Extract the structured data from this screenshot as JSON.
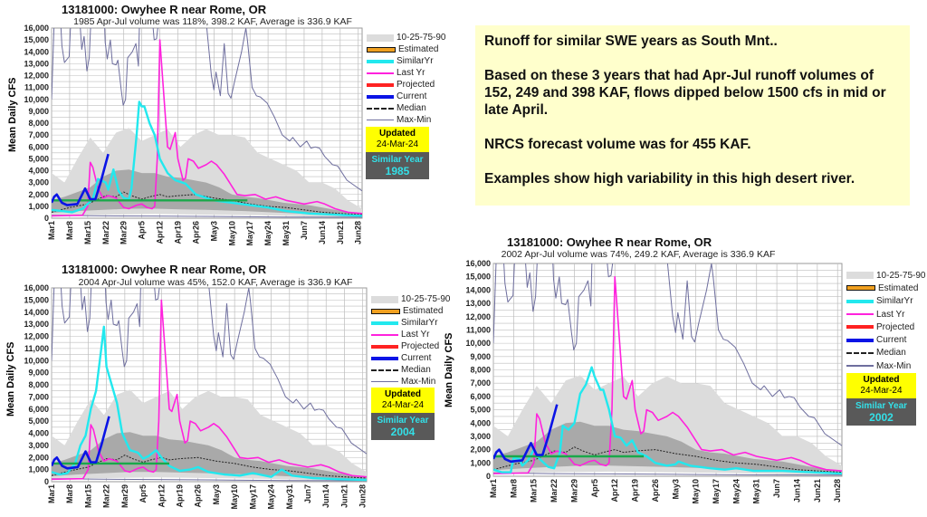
{
  "note": {
    "lines": [
      "Runoff for similar SWE years as South Mnt..",
      "Based on these 3 years that had Apr-Jul runoff volumes of 152, 249 and 398 KAF, flows dipped below 1500 cfs in mid or late April.",
      "NRCS forecast volume was for 455 KAF.",
      "Examples show high variability in this high desert river."
    ]
  },
  "colors": {
    "band_outer": "#dcdcdc",
    "band_inner": "#a9a9a9",
    "similar": "#22e8ee",
    "last_yr": "#ff22dd",
    "projected": "#ff2222",
    "current": "#0a14e6",
    "median": "#222222",
    "maxmin": "#6e6e9e",
    "threshold": "#1aa84a",
    "estimated": "#f0a020",
    "updated_bg": "#ffff00",
    "similar_box_bg": "#595959"
  },
  "chart_data": {
    "type": "line",
    "ylabel": "Mean Daily CFS",
    "ylim": [
      0,
      16000
    ],
    "xlim_days_from_mar1": [
      0,
      120.5
    ],
    "yticks": [
      "0",
      "1,000",
      "2,000",
      "3,000",
      "4,000",
      "5,000",
      "6,000",
      "7,000",
      "8,000",
      "9,000",
      "10,000",
      "11,000",
      "12,000",
      "13,000",
      "14,000",
      "15,000",
      "16,000"
    ],
    "xticks": [
      "Mar1",
      "Mar8",
      "Mar15",
      "Mar22",
      "Mar29",
      "Apr5",
      "Apr12",
      "Apr19",
      "Apr26",
      "May3",
      "May10",
      "May17",
      "May24",
      "May31",
      "Jun7",
      "Jun14",
      "Jun21",
      "Jun28"
    ],
    "legend": [
      "10-25-75-90",
      "Estimated",
      "SimilarYr",
      "Last Yr",
      "Projected",
      "Current",
      "Median",
      "Max-Min"
    ],
    "updated_label": "Updated",
    "updated_date": "24-Mar-24",
    "similar_label": "Similar Year",
    "common_series": {
      "max": [
        [
          0,
          10000
        ],
        [
          1,
          16500
        ],
        [
          3.5,
          16500
        ],
        [
          4,
          14500
        ],
        [
          5,
          13100
        ],
        [
          6.8,
          13600
        ],
        [
          7.4,
          16500
        ],
        [
          11,
          16500
        ],
        [
          11.7,
          14200
        ],
        [
          12.6,
          15300
        ],
        [
          13.7,
          12400
        ],
        [
          14.6,
          13500
        ],
        [
          15.2,
          16500
        ],
        [
          20.5,
          16500
        ],
        [
          20.8,
          14800
        ],
        [
          21.6,
          13400
        ],
        [
          22.8,
          15000
        ],
        [
          23.6,
          13000
        ],
        [
          25,
          12900
        ],
        [
          25.7,
          13300
        ],
        [
          27,
          10800
        ],
        [
          27.8,
          9500
        ],
        [
          28.7,
          10000
        ],
        [
          29.5,
          13500
        ],
        [
          31.3,
          14000
        ],
        [
          32.7,
          14700
        ],
        [
          33.7,
          12800
        ],
        [
          34.1,
          16500
        ],
        [
          39.2,
          16500
        ],
        [
          39.8,
          15000
        ],
        [
          40.7,
          15100
        ],
        [
          41.5,
          16500
        ],
        [
          60,
          16500
        ],
        [
          62,
          12000
        ],
        [
          63,
          10800
        ],
        [
          63.8,
          12300
        ],
        [
          65.5,
          10300
        ],
        [
          67,
          14700
        ],
        [
          68.5,
          10500
        ],
        [
          69.6,
          10100
        ],
        [
          71,
          11500
        ],
        [
          73.7,
          14000
        ],
        [
          75.4,
          16000
        ],
        [
          76,
          15000
        ],
        [
          77.8,
          11000
        ],
        [
          79.5,
          10300
        ],
        [
          81,
          10200
        ],
        [
          83.6,
          9700
        ],
        [
          86.5,
          8500
        ],
        [
          89.5,
          7000
        ],
        [
          92.4,
          6500
        ],
        [
          93.6,
          6800
        ],
        [
          96.5,
          6000
        ],
        [
          99,
          6500
        ],
        [
          100.6,
          5900
        ],
        [
          102.3,
          6000
        ],
        [
          104,
          5900
        ],
        [
          106,
          5200
        ],
        [
          109,
          4500
        ],
        [
          111,
          4400
        ],
        [
          114.6,
          3200
        ],
        [
          120.5,
          2300
        ]
      ],
      "min": [
        [
          0,
          250
        ],
        [
          20,
          200
        ],
        [
          40,
          180
        ],
        [
          60,
          150
        ],
        [
          90,
          100
        ],
        [
          120.5,
          80
        ]
      ],
      "p10": [
        [
          0,
          250
        ],
        [
          20,
          300
        ],
        [
          40,
          350
        ],
        [
          60,
          300
        ],
        [
          80,
          250
        ],
        [
          100,
          150
        ],
        [
          120.5,
          80
        ]
      ],
      "p90": [
        [
          0,
          3800
        ],
        [
          5,
          3000
        ],
        [
          10,
          5000
        ],
        [
          15,
          6800
        ],
        [
          20,
          5500
        ],
        [
          25,
          7200
        ],
        [
          30,
          7600
        ],
        [
          35,
          6500
        ],
        [
          40,
          7000
        ],
        [
          45,
          7500
        ],
        [
          50,
          6000
        ],
        [
          55,
          7000
        ],
        [
          60,
          7500
        ],
        [
          65,
          7000
        ],
        [
          70,
          7000
        ],
        [
          75,
          6800
        ],
        [
          80,
          5500
        ],
        [
          85,
          5000
        ],
        [
          90,
          4500
        ],
        [
          95,
          4000
        ],
        [
          100,
          3000
        ],
        [
          105,
          3000
        ],
        [
          110,
          2500
        ],
        [
          115,
          1500
        ],
        [
          120.5,
          800
        ]
      ],
      "p25": [
        [
          0,
          450
        ],
        [
          10,
          600
        ],
        [
          20,
          700
        ],
        [
          30,
          800
        ],
        [
          40,
          800
        ],
        [
          50,
          750
        ],
        [
          60,
          700
        ],
        [
          75,
          600
        ],
        [
          90,
          450
        ],
        [
          105,
          300
        ],
        [
          120.5,
          150
        ]
      ],
      "p75": [
        [
          0,
          1500
        ],
        [
          5,
          1800
        ],
        [
          10,
          2200
        ],
        [
          15,
          2600
        ],
        [
          20,
          3500
        ],
        [
          25,
          4000
        ],
        [
          30,
          4100
        ],
        [
          35,
          3800
        ],
        [
          40,
          3800
        ],
        [
          45,
          3500
        ],
        [
          50,
          3400
        ],
        [
          55,
          3200
        ],
        [
          60,
          3000
        ],
        [
          65,
          2600
        ],
        [
          70,
          2000
        ],
        [
          75,
          1800
        ],
        [
          80,
          1700
        ],
        [
          90,
          1300
        ],
        [
          100,
          1100
        ],
        [
          110,
          700
        ],
        [
          120.5,
          350
        ]
      ],
      "median": [
        [
          0,
          500
        ],
        [
          7,
          900
        ],
        [
          14,
          1200
        ],
        [
          21,
          1900
        ],
        [
          25,
          1800
        ],
        [
          28,
          2200
        ],
        [
          31,
          1900
        ],
        [
          35,
          1600
        ],
        [
          38,
          1800
        ],
        [
          42,
          2000
        ],
        [
          45,
          1800
        ],
        [
          49,
          1900
        ],
        [
          56,
          2000
        ],
        [
          63,
          1700
        ],
        [
          70,
          1500
        ],
        [
          77,
          1200
        ],
        [
          84,
          1000
        ],
        [
          91,
          900
        ],
        [
          98,
          700
        ],
        [
          105,
          500
        ],
        [
          112,
          400
        ],
        [
          120.5,
          300
        ]
      ],
      "last_yr": [
        [
          0,
          200
        ],
        [
          12,
          250
        ],
        [
          14,
          1000
        ],
        [
          15,
          4700
        ],
        [
          16,
          4300
        ],
        [
          18,
          2500
        ],
        [
          20,
          1700
        ],
        [
          22,
          1900
        ],
        [
          25,
          1700
        ],
        [
          28,
          900
        ],
        [
          30,
          800
        ],
        [
          33,
          1100
        ],
        [
          35,
          1200
        ],
        [
          37,
          900
        ],
        [
          39,
          800
        ],
        [
          40,
          1000
        ],
        [
          41,
          5000
        ],
        [
          42,
          15000
        ],
        [
          43,
          12000
        ],
        [
          45,
          6000
        ],
        [
          46,
          5800
        ],
        [
          48,
          7200
        ],
        [
          49,
          5000
        ],
        [
          51,
          3200
        ],
        [
          52,
          3400
        ],
        [
          53,
          5000
        ],
        [
          55,
          4800
        ],
        [
          57,
          4200
        ],
        [
          60,
          4500
        ],
        [
          62,
          4800
        ],
        [
          64,
          4500
        ],
        [
          67,
          3700
        ],
        [
          72,
          2000
        ],
        [
          75,
          1900
        ],
        [
          79,
          2000
        ],
        [
          83,
          1600
        ],
        [
          87,
          1800
        ],
        [
          91,
          1500
        ],
        [
          98,
          1200
        ],
        [
          103,
          1400
        ],
        [
          106,
          1200
        ],
        [
          110,
          800
        ],
        [
          115,
          500
        ],
        [
          120.5,
          400
        ]
      ],
      "current": [
        [
          0,
          1300
        ],
        [
          1,
          1800
        ],
        [
          2,
          2000
        ],
        [
          4,
          1300
        ],
        [
          6,
          1100
        ],
        [
          10,
          1200
        ],
        [
          13,
          2500
        ],
        [
          15,
          1600
        ],
        [
          17,
          1600
        ],
        [
          19,
          3000
        ],
        [
          22,
          5400
        ]
      ]
    },
    "panels": [
      {
        "title": "13181000: Owyhee R near Rome, OR",
        "subtitle": "1985 Apr-Jul volume was 118%, 398.2 KAF, Average is 336.9 KAF",
        "similar_year": "1985",
        "threshold": {
          "value": 1500,
          "end_day": 76
        },
        "similar_yr": [
          [
            0,
            700
          ],
          [
            4,
            600
          ],
          [
            8,
            500
          ],
          [
            12,
            800
          ],
          [
            16,
            1600
          ],
          [
            18,
            3300
          ],
          [
            21,
            3000
          ],
          [
            22,
            2400
          ],
          [
            24,
            4100
          ],
          [
            26,
            2300
          ],
          [
            28,
            1700
          ],
          [
            30,
            1600
          ],
          [
            31,
            2500
          ],
          [
            33,
            7000
          ],
          [
            34,
            9800
          ],
          [
            35,
            9400
          ],
          [
            36,
            9400
          ],
          [
            38,
            8000
          ],
          [
            40,
            7000
          ],
          [
            42,
            5000
          ],
          [
            45,
            3800
          ],
          [
            48,
            3200
          ],
          [
            52,
            2900
          ],
          [
            56,
            2000
          ],
          [
            63,
            1500
          ],
          [
            70,
            1300
          ],
          [
            77,
            1100
          ],
          [
            84,
            900
          ],
          [
            91,
            600
          ],
          [
            100,
            400
          ],
          [
            110,
            300
          ],
          [
            120.5,
            200
          ]
        ]
      },
      {
        "title": "13181000: Owyhee R near Rome, OR",
        "subtitle": "2004 Apr-Jul volume was 45%, 152.0 KAF, Average is 336.9 KAF",
        "similar_year": "2004",
        "threshold": {
          "value": 1500,
          "end_day": 45
        },
        "similar_yr": [
          [
            0,
            800
          ],
          [
            3,
            600
          ],
          [
            6,
            700
          ],
          [
            9,
            1500
          ],
          [
            11,
            3000
          ],
          [
            13,
            3800
          ],
          [
            15,
            6000
          ],
          [
            17,
            7500
          ],
          [
            19,
            11000
          ],
          [
            20,
            12800
          ],
          [
            21,
            9500
          ],
          [
            23,
            8000
          ],
          [
            25,
            6500
          ],
          [
            27,
            4000
          ],
          [
            30,
            2600
          ],
          [
            33,
            2400
          ],
          [
            35,
            1900
          ],
          [
            37,
            2100
          ],
          [
            40,
            2600
          ],
          [
            42,
            2000
          ],
          [
            45,
            1300
          ],
          [
            49,
            900
          ],
          [
            53,
            1000
          ],
          [
            56,
            1200
          ],
          [
            60,
            800
          ],
          [
            66,
            600
          ],
          [
            72,
            500
          ],
          [
            77,
            700
          ],
          [
            84,
            400
          ],
          [
            88,
            1000
          ],
          [
            92,
            500
          ],
          [
            100,
            300
          ],
          [
            110,
            200
          ],
          [
            120.5,
            150
          ]
        ]
      },
      {
        "title": "13181000: Owyhee R near Rome, OR",
        "subtitle": "2002 Apr-Jul volume was 74%, 249.2 KAF, Average is 336.9 KAF",
        "similar_year": "2002",
        "threshold": {
          "value": 1500,
          "end_day": 52
        },
        "similar_yr": [
          [
            0,
            500
          ],
          [
            3,
            300
          ],
          [
            6,
            300
          ],
          [
            7,
            1400
          ],
          [
            9,
            1300
          ],
          [
            10,
            800
          ],
          [
            12,
            1200
          ],
          [
            14,
            2000
          ],
          [
            16,
            1300
          ],
          [
            19,
            700
          ],
          [
            21,
            600
          ],
          [
            23,
            1800
          ],
          [
            24,
            3800
          ],
          [
            26,
            3500
          ],
          [
            28,
            4000
          ],
          [
            30,
            6200
          ],
          [
            32,
            6900
          ],
          [
            34,
            8200
          ],
          [
            35,
            7500
          ],
          [
            37,
            6500
          ],
          [
            38,
            6500
          ],
          [
            40,
            5000
          ],
          [
            42,
            3000
          ],
          [
            44,
            2900
          ],
          [
            46,
            2300
          ],
          [
            48,
            2700
          ],
          [
            50,
            1800
          ],
          [
            53,
            1500
          ],
          [
            56,
            1000
          ],
          [
            60,
            800
          ],
          [
            63,
            900
          ],
          [
            64,
            1100
          ],
          [
            68,
            800
          ],
          [
            75,
            600
          ],
          [
            80,
            500
          ],
          [
            84,
            600
          ],
          [
            90,
            400
          ],
          [
            100,
            400
          ],
          [
            110,
            300
          ],
          [
            120.5,
            200
          ]
        ]
      }
    ]
  }
}
